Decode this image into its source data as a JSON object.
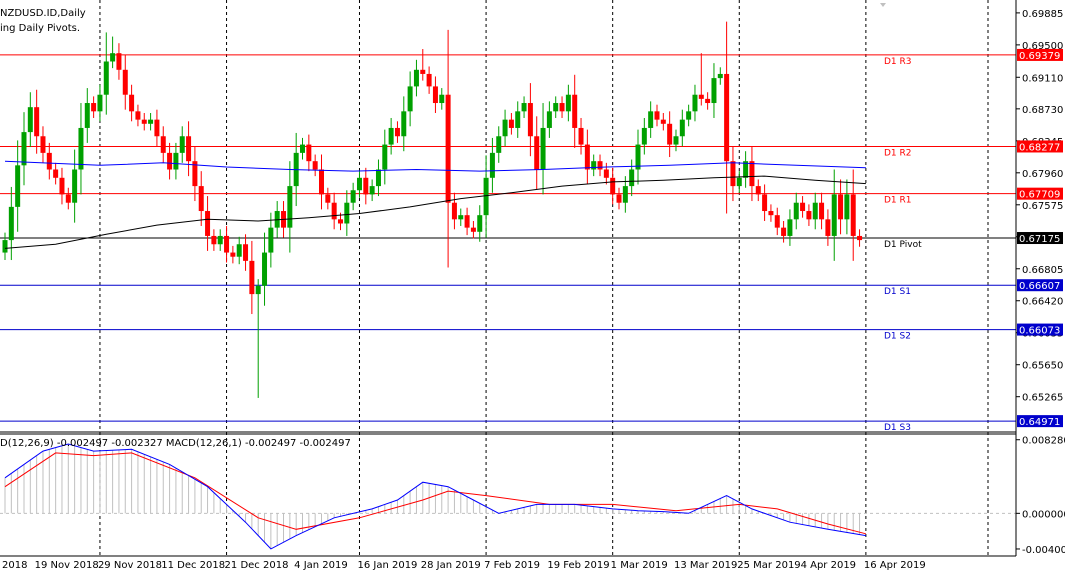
{
  "header": {
    "symbol_line": "NZDUSD.ID,Daily",
    "indicator_line": "ing Daily Pivots."
  },
  "macd_label": "D(12,26,9) -0.002497 -0.002327 MACD(12,26,1) -0.002497 -0.002497",
  "colors": {
    "bull": "#00a000",
    "bear": "#ff0000",
    "ma_fast": "#0000ff",
    "ma_slow": "#000000",
    "resistance": "#ff0000",
    "support": "#0000cc",
    "pivot": "#000000",
    "macd_main": "#0000ff",
    "macd_signal": "#ff0000",
    "histogram": "#c0c0c0"
  },
  "chart_data": [
    {
      "type": "candlestick",
      "title": "NZDUSD.ID,Daily",
      "y_ticks": [
        "0.69885",
        "0.69500",
        "0.69110",
        "0.68730",
        "0.68345",
        "0.67960",
        "0.67575",
        "0.67190",
        "0.66805",
        "0.66420",
        "0.66035",
        "0.65650",
        "0.65265"
      ],
      "ylim": [
        0.6484,
        0.6998
      ],
      "x_labels": [
        "2018",
        "19 Nov 2018",
        "29 Nov 2018",
        "11 Dec 2018",
        "21 Dec 2018",
        "4 Jan 2019",
        "16 Jan 2019",
        "28 Jan 2019",
        "7 Feb 2019",
        "19 Feb 2019",
        "1 Mar 2019",
        "13 Mar 2019",
        "25 Mar 2019",
        "4 Apr 2019",
        "16 Apr 2019"
      ],
      "x_label_index": [
        -1,
        5,
        15,
        25,
        35,
        46,
        56,
        66,
        76,
        86,
        96,
        106,
        116,
        126,
        136
      ],
      "pivots": [
        {
          "name": "D1 R3",
          "value": 0.69379,
          "tag": "0.69379",
          "color": "#ff0000"
        },
        {
          "name": "D1 R2",
          "value": 0.68277,
          "tag": "0.68277",
          "color": "#ff0000"
        },
        {
          "name": "D1 R1",
          "value": 0.67709,
          "tag": "0.67709",
          "color": "#ff0000"
        },
        {
          "name": "D1 Pivot",
          "value": 0.67175,
          "tag": "0.67175",
          "color": "#000000"
        },
        {
          "name": "D1 S1",
          "value": 0.66607,
          "tag": "0.66607",
          "color": "#0000cc"
        },
        {
          "name": "D1 S2",
          "value": 0.66073,
          "tag": "0.66073",
          "color": "#0000cc"
        },
        {
          "name": "D1 S3",
          "value": 0.64971,
          "tag": "0.64971",
          "color": "#0000cc"
        }
      ],
      "closes": [
        0.6715,
        0.6755,
        0.6805,
        0.6845,
        0.6875,
        0.684,
        0.682,
        0.68,
        0.679,
        0.677,
        0.676,
        0.68,
        0.685,
        0.688,
        0.687,
        0.689,
        0.693,
        0.694,
        0.692,
        0.689,
        0.687,
        0.686,
        0.6855,
        0.686,
        0.684,
        0.682,
        0.68,
        0.682,
        0.684,
        0.681,
        0.678,
        0.675,
        0.672,
        0.671,
        0.672,
        0.67,
        0.6695,
        0.671,
        0.669,
        0.665,
        0.666,
        0.67,
        0.673,
        0.675,
        0.673,
        0.678,
        0.682,
        0.683,
        0.681,
        0.68,
        0.677,
        0.676,
        0.674,
        0.6735,
        0.676,
        0.6775,
        0.679,
        0.677,
        0.678,
        0.68,
        0.683,
        0.685,
        0.684,
        0.687,
        0.69,
        0.692,
        0.6915,
        0.69,
        0.688,
        0.689,
        0.676,
        0.674,
        0.6745,
        0.673,
        0.6725,
        0.6745,
        0.679,
        0.682,
        0.684,
        0.686,
        0.685,
        0.687,
        0.688,
        0.684,
        0.68,
        0.685,
        0.687,
        0.688,
        0.687,
        0.689,
        0.685,
        0.683,
        0.68,
        0.681,
        0.68,
        0.679,
        0.677,
        0.676,
        0.678,
        0.68,
        0.683,
        0.685,
        0.687,
        0.686,
        0.6855,
        0.683,
        0.684,
        0.686,
        0.687,
        0.689,
        0.6885,
        0.688,
        0.691,
        0.6915,
        0.681,
        0.678,
        0.679,
        0.681,
        0.678,
        0.677,
        0.675,
        0.6745,
        0.673,
        0.672,
        0.674,
        0.676,
        0.675,
        0.674,
        0.676,
        0.674,
        0.672,
        0.677,
        0.674,
        0.677,
        0.672,
        0.6715
      ],
      "opens": [
        0.67,
        0.6715,
        0.6755,
        0.6805,
        0.6845,
        0.6875,
        0.684,
        0.682,
        0.68,
        0.679,
        0.677,
        0.676,
        0.68,
        0.685,
        0.688,
        0.687,
        0.689,
        0.693,
        0.694,
        0.692,
        0.689,
        0.687,
        0.686,
        0.6855,
        0.686,
        0.684,
        0.682,
        0.68,
        0.682,
        0.684,
        0.681,
        0.678,
        0.675,
        0.672,
        0.671,
        0.672,
        0.67,
        0.6695,
        0.671,
        0.669,
        0.665,
        0.666,
        0.67,
        0.673,
        0.675,
        0.673,
        0.678,
        0.682,
        0.683,
        0.681,
        0.68,
        0.677,
        0.676,
        0.674,
        0.6735,
        0.676,
        0.6775,
        0.679,
        0.677,
        0.678,
        0.68,
        0.683,
        0.685,
        0.684,
        0.687,
        0.69,
        0.692,
        0.6915,
        0.69,
        0.688,
        0.689,
        0.676,
        0.674,
        0.6745,
        0.673,
        0.6725,
        0.6745,
        0.679,
        0.682,
        0.684,
        0.686,
        0.685,
        0.687,
        0.688,
        0.684,
        0.68,
        0.685,
        0.687,
        0.688,
        0.687,
        0.689,
        0.685,
        0.683,
        0.68,
        0.681,
        0.68,
        0.679,
        0.677,
        0.676,
        0.678,
        0.68,
        0.683,
        0.685,
        0.687,
        0.686,
        0.6855,
        0.683,
        0.684,
        0.686,
        0.687,
        0.689,
        0.6885,
        0.688,
        0.691,
        0.6915,
        0.681,
        0.678,
        0.679,
        0.681,
        0.678,
        0.677,
        0.675,
        0.6745,
        0.673,
        0.672,
        0.674,
        0.676,
        0.675,
        0.674,
        0.676,
        0.674,
        0.672,
        0.677,
        0.674,
        0.677,
        0.672
      ],
      "notable_wicks": [
        {
          "index": 16,
          "high": 0.6965
        },
        {
          "index": 17,
          "high": 0.696
        },
        {
          "index": 40,
          "low": 0.6525
        },
        {
          "index": 66,
          "high": 0.6945
        },
        {
          "index": 110,
          "high": 0.694
        },
        {
          "index": 136,
          "low": 0.6665
        }
      ],
      "ma_fast": [
        [
          0,
          0.681
        ],
        [
          15,
          0.6805
        ],
        [
          25,
          0.6808
        ],
        [
          35,
          0.6803
        ],
        [
          45,
          0.68
        ],
        [
          55,
          0.6798
        ],
        [
          65,
          0.68
        ],
        [
          75,
          0.6798
        ],
        [
          85,
          0.68
        ],
        [
          95,
          0.6803
        ],
        [
          105,
          0.6805
        ],
        [
          115,
          0.6808
        ],
        [
          125,
          0.6805
        ],
        [
          136,
          0.6802
        ]
      ],
      "ma_slow": [
        [
          0,
          0.6705
        ],
        [
          8,
          0.671
        ],
        [
          16,
          0.6722
        ],
        [
          24,
          0.6733
        ],
        [
          32,
          0.674
        ],
        [
          40,
          0.6738
        ],
        [
          48,
          0.6742
        ],
        [
          56,
          0.6747
        ],
        [
          64,
          0.6755
        ],
        [
          72,
          0.6765
        ],
        [
          80,
          0.6772
        ],
        [
          88,
          0.678
        ],
        [
          96,
          0.6785
        ],
        [
          104,
          0.6787
        ],
        [
          112,
          0.679
        ],
        [
          120,
          0.6792
        ],
        [
          128,
          0.6787
        ],
        [
          136,
          0.6783
        ]
      ]
    },
    {
      "type": "macd",
      "y_ticks": [
        "0.008280",
        "0.000000",
        "-0.004009"
      ],
      "ylim": [
        -0.0048,
        0.0087
      ],
      "main": [
        [
          0,
          0.004
        ],
        [
          6,
          0.007
        ],
        [
          10,
          0.0078
        ],
        [
          14,
          0.007
        ],
        [
          20,
          0.0072
        ],
        [
          26,
          0.0055
        ],
        [
          32,
          0.003
        ],
        [
          38,
          -0.001
        ],
        [
          42,
          -0.004
        ],
        [
          46,
          -0.0025
        ],
        [
          52,
          -0.0005
        ],
        [
          58,
          0.0005
        ],
        [
          62,
          0.0015
        ],
        [
          66,
          0.0035
        ],
        [
          70,
          0.003
        ],
        [
          74,
          0.0015
        ],
        [
          78,
          0.0
        ],
        [
          84,
          0.001
        ],
        [
          90,
          0.001
        ],
        [
          96,
          0.0005
        ],
        [
          100,
          0.0003
        ],
        [
          104,
          0.0002
        ],
        [
          108,
          0.0
        ],
        [
          114,
          0.002
        ],
        [
          118,
          0.0005
        ],
        [
          124,
          -0.001
        ],
        [
          130,
          -0.0018
        ],
        [
          136,
          -0.0025
        ]
      ],
      "signal": [
        [
          0,
          0.003
        ],
        [
          8,
          0.0068
        ],
        [
          14,
          0.0065
        ],
        [
          20,
          0.0068
        ],
        [
          30,
          0.004
        ],
        [
          40,
          -0.0005
        ],
        [
          46,
          -0.0018
        ],
        [
          56,
          -0.0005
        ],
        [
          66,
          0.0015
        ],
        [
          70,
          0.0025
        ],
        [
          76,
          0.002
        ],
        [
          86,
          0.001
        ],
        [
          96,
          0.001
        ],
        [
          106,
          0.0003
        ],
        [
          116,
          0.001
        ],
        [
          122,
          0.0005
        ],
        [
          130,
          -0.0012
        ],
        [
          136,
          -0.0023
        ]
      ]
    }
  ]
}
